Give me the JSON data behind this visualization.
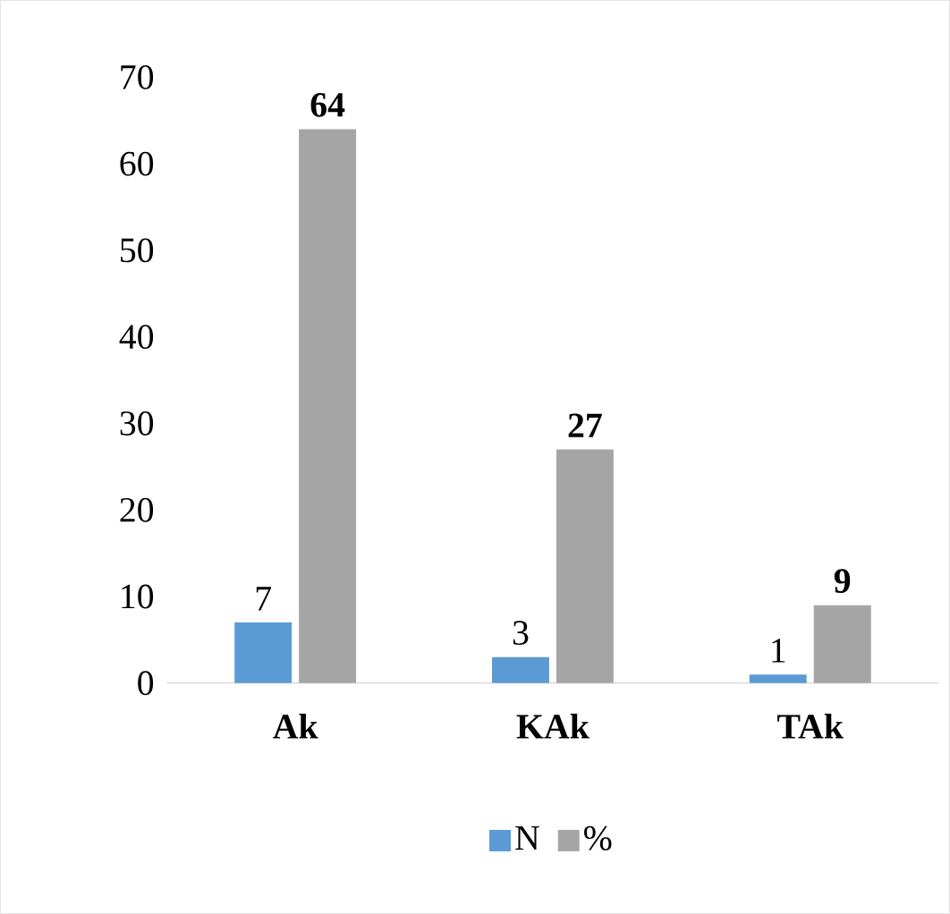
{
  "chart_data": {
    "type": "bar",
    "categories": [
      "Ak",
      "KAk",
      "TAk"
    ],
    "series": [
      {
        "name": "N",
        "color": "#5b9bd5",
        "values": [
          7,
          3,
          1
        ]
      },
      {
        "name": "%",
        "color": "#a5a5a5",
        "values": [
          64,
          27,
          9
        ]
      }
    ],
    "ylim": [
      0,
      70
    ],
    "yticks": [
      0,
      10,
      20,
      30,
      40,
      50,
      60,
      70
    ],
    "legend": "bottom",
    "data_labels": true
  }
}
